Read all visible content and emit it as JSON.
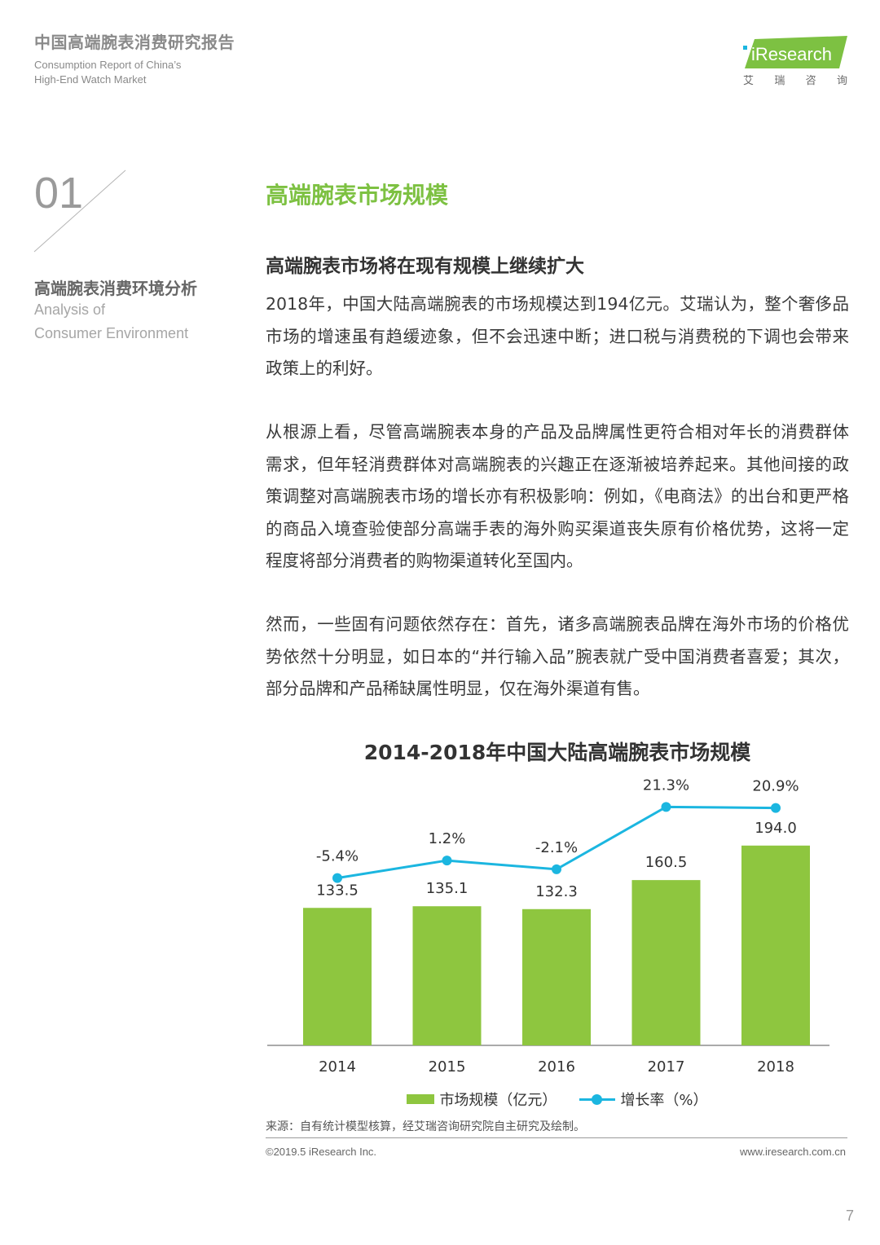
{
  "header": {
    "title_cn": "中国高端腕表消费研究报告",
    "title_en_line1": "Consumption Report of China’s",
    "title_en_line2": "High-End Watch Market",
    "logo_text": "iResearch",
    "logo_cn_chars": [
      "艾",
      "瑞",
      "咨",
      "询"
    ]
  },
  "section": {
    "number": "01",
    "title_cn": "高端腕表消费环境分析",
    "title_en_line1": "Analysis of",
    "title_en_line2": "Consumer Environment"
  },
  "main": {
    "heading": "高端腕表市场规模",
    "subheading": "高端腕表市场将在现有规模上继续扩大",
    "paragraphs": [
      "2018年，中国大陆高端腕表的市场规模达到194亿元。艾瑞认为，整个奢侈品市场的增速虽有趋缓迹象，但不会迅速中断；进口税与消费税的下调也会带来政策上的利好。",
      "从根源上看，尽管高端腕表本身的产品及品牌属性更符合相对年长的消费群体需求，但年轻消费群体对高端腕表的兴趣正在逐渐被培养起来。其他间接的政策调整对高端腕表市场的增长亦有积极影响：例如，《电商法》的出台和更严格的商品入境查验使部分高端手表的海外购买渠道丧失原有价格优势，这将一定程度将部分消费者的购物渠道转化至国内。",
      "然而，一些固有问题依然存在：首先，诸多高端腕表品牌在海外市场的价格优势依然十分明显，如日本的“并行输入品”腕表就广受中国消费者喜爱；其次，部分品牌和产品稀缺属性明显，仅在海外渠道有售。"
    ]
  },
  "chart_data": {
    "type": "bar",
    "title": "2014-2018年中国大陆高端腕表市场规模",
    "categories": [
      "2014",
      "2015",
      "2016",
      "2017",
      "2018"
    ],
    "series": [
      {
        "name": "市场规模（亿元）",
        "type": "bar",
        "values": [
          133.5,
          135.1,
          132.3,
          160.5,
          194.0
        ],
        "labels": [
          "133.5",
          "135.1",
          "132.3",
          "160.5",
          "194.0"
        ],
        "color": "#8ec63f"
      },
      {
        "name": "增长率（%）",
        "type": "line",
        "values": [
          -5.4,
          1.2,
          -2.1,
          21.3,
          20.9
        ],
        "labels": [
          "-5.4%",
          "1.2%",
          "-2.1%",
          "21.3%",
          "20.9%"
        ],
        "color": "#1bb6e0"
      }
    ],
    "legend_position": "bottom",
    "grid": false
  },
  "footer": {
    "source": "来源：自有统计模型核算，经艾瑞咨询研究院自主研究及绘制。",
    "copyright": "©2019.5 iResearch Inc.",
    "website": "www.iresearch.com.cn",
    "page_number": "7"
  }
}
